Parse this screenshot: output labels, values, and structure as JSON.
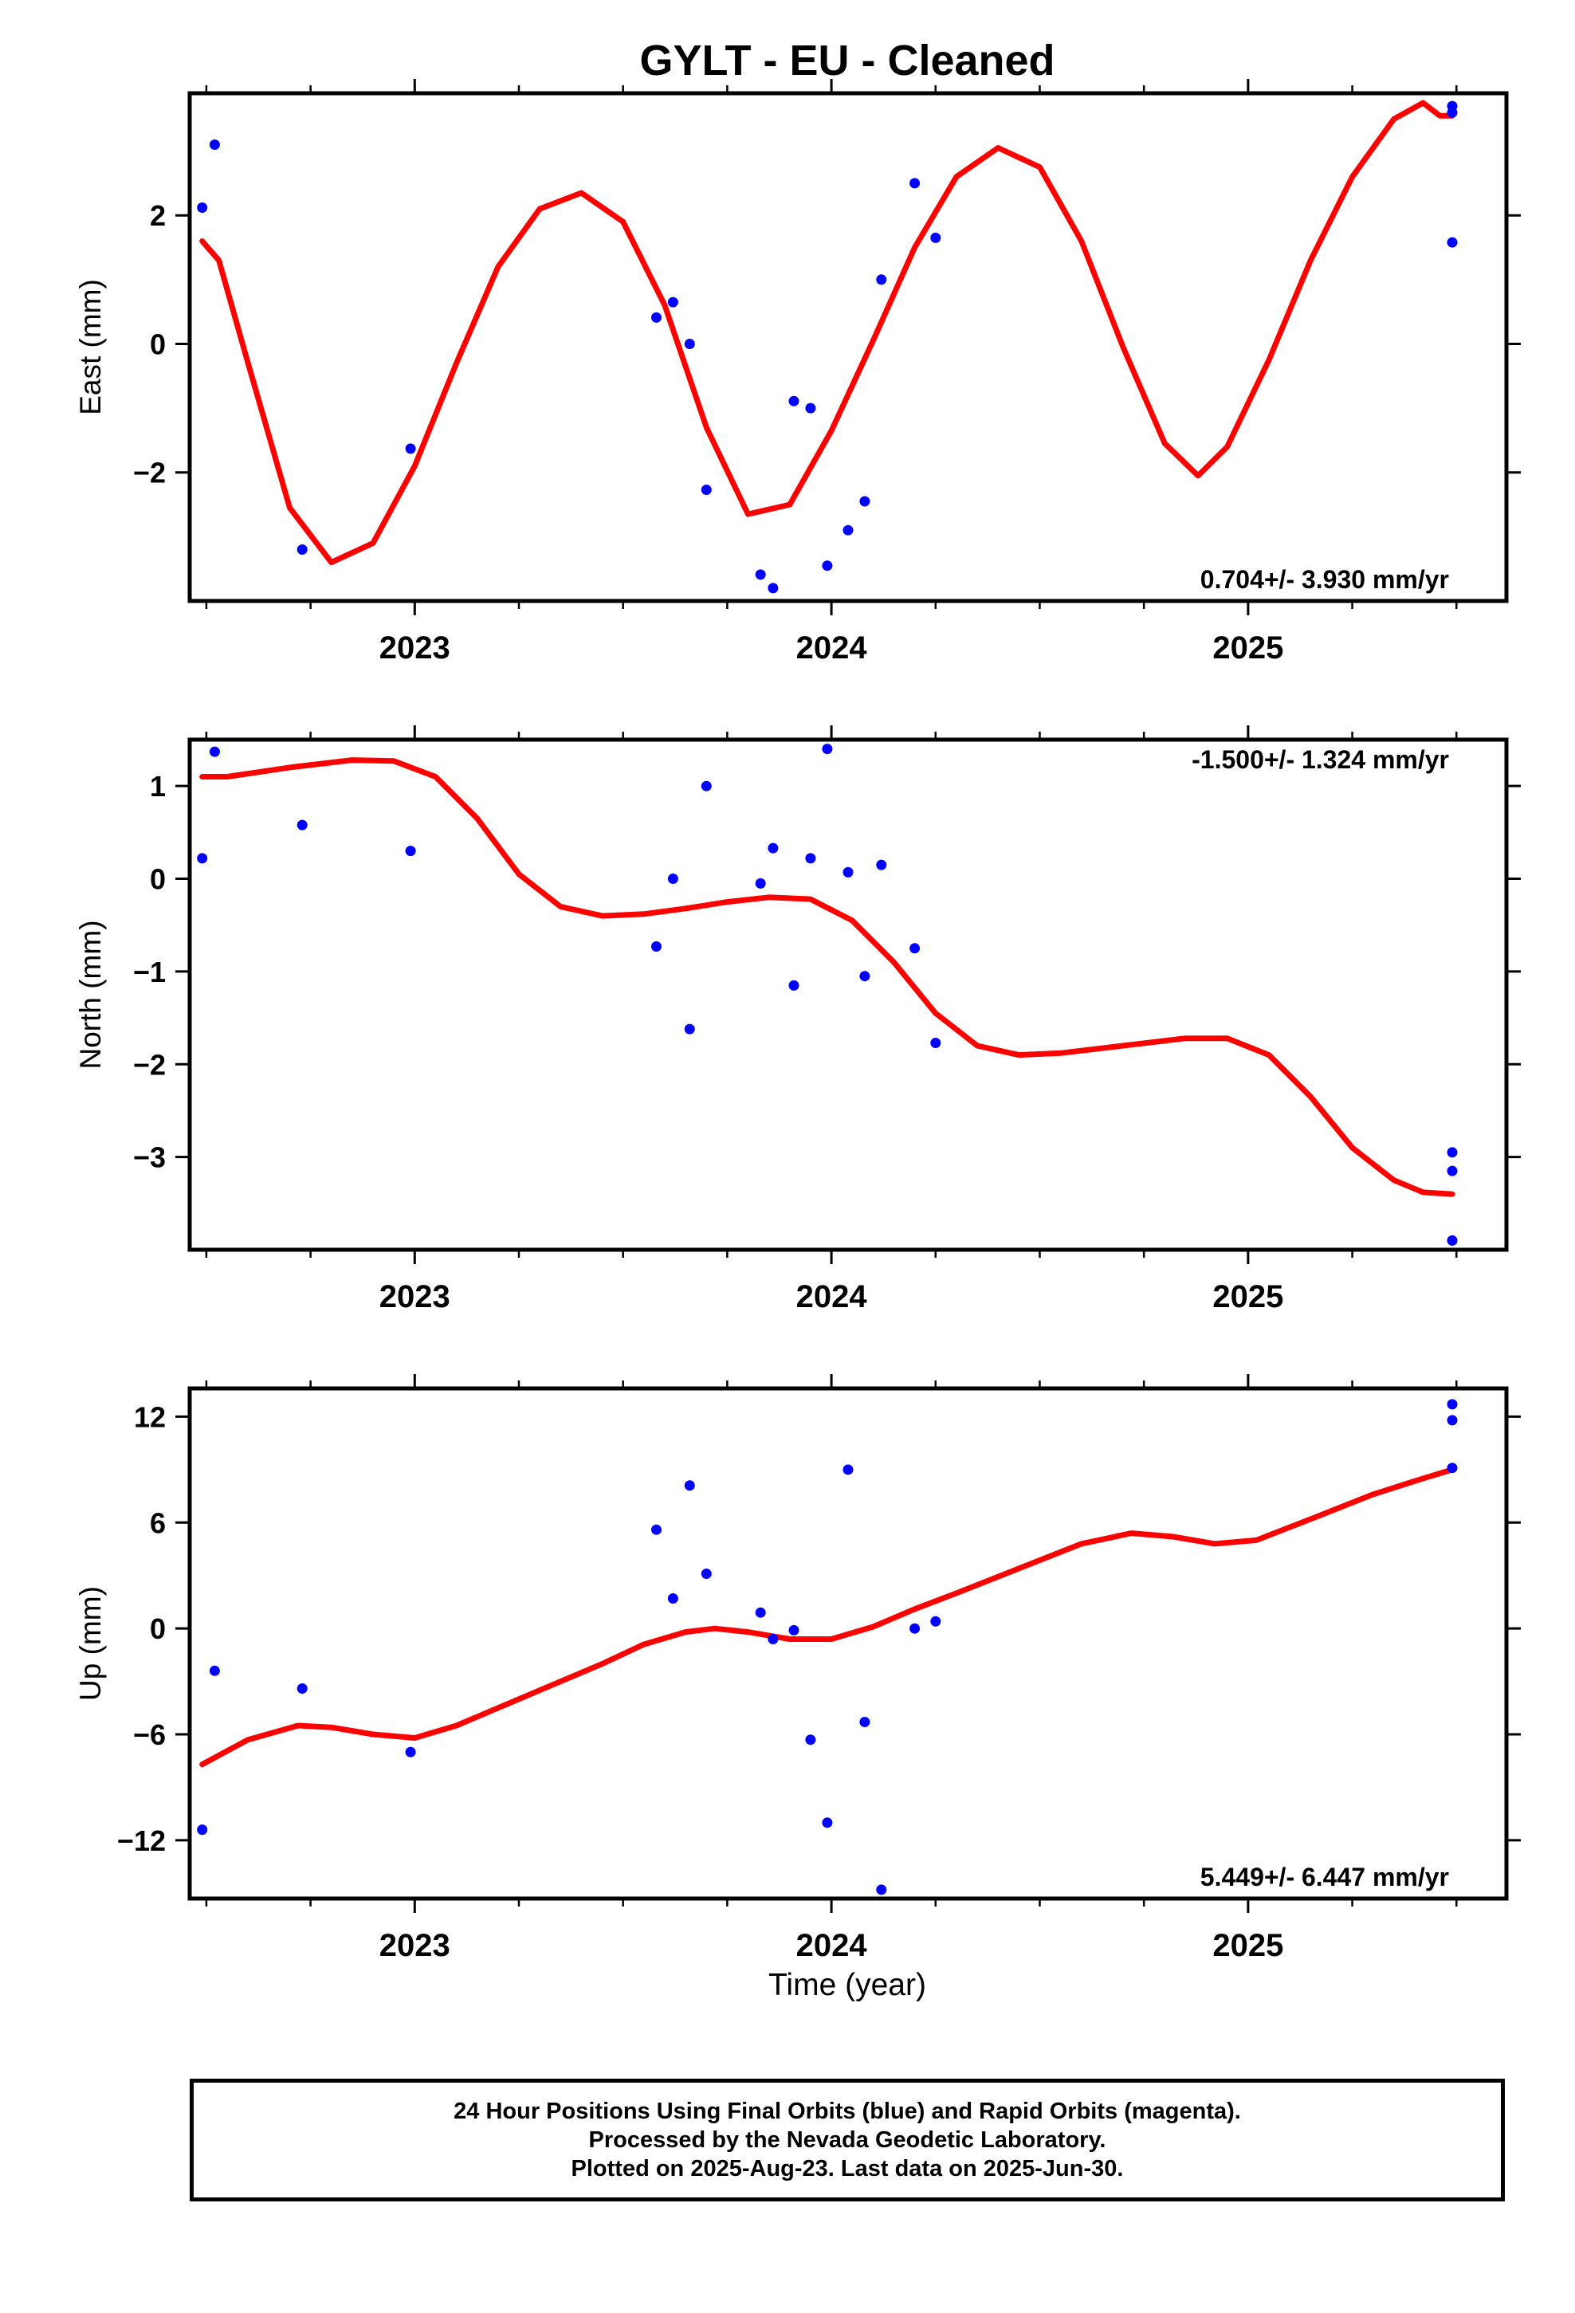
{
  "title": "GYLT  - EU - Cleaned",
  "colors": {
    "final_orbits": "#0000ff",
    "fit_curve": "#ff0000",
    "frame": "#000000"
  },
  "xlabel": "Time (year)",
  "footer": {
    "line1": "24 Hour Positions Using Final Orbits (blue) and Rapid Orbits (magenta).",
    "line2": "Processed by the Nevada Geodetic Laboratory.",
    "line3": "Plotted on 2025-Aug-23. Last data on 2025-Jun-30."
  },
  "chart_data": [
    {
      "type": "scatter",
      "panel": "east",
      "ylabel": "East (mm)",
      "rate_text": "0.704+/- 3.930 mm/yr",
      "xlim": [
        2022.46,
        2025.62
      ],
      "ylim": [
        -4.0,
        3.9
      ],
      "yticks": [
        -2,
        0,
        2
      ],
      "ytick_labels": [
        "−2",
        "0",
        "2"
      ],
      "xticks": [
        2023,
        2024,
        2025
      ],
      "xtick_labels": [
        "2023",
        "2024",
        "2025"
      ],
      "grid": false,
      "series": [
        {
          "points": [
            [
              2022.49,
              2.12
            ],
            [
              2022.52,
              3.1
            ],
            [
              2022.73,
              -3.2
            ],
            [
              2022.99,
              -1.63
            ],
            [
              2023.58,
              0.41
            ],
            [
              2023.62,
              0.65
            ],
            [
              2023.66,
              0.0
            ],
            [
              2023.7,
              -2.27
            ],
            [
              2023.83,
              -3.59
            ],
            [
              2023.86,
              -3.8
            ],
            [
              2023.91,
              -0.89
            ],
            [
              2023.95,
              -1.0
            ],
            [
              2023.99,
              -3.45
            ],
            [
              2024.04,
              -2.9
            ],
            [
              2024.08,
              -2.45
            ],
            [
              2024.12,
              1.0
            ],
            [
              2024.2,
              2.5
            ],
            [
              2024.25,
              1.65
            ],
            [
              2025.49,
              3.7
            ],
            [
              2025.49,
              3.6
            ],
            [
              2025.49,
              1.58
            ]
          ]
        },
        {
          "fit": [
            [
              2022.49,
              1.6
            ],
            [
              2022.53,
              1.3
            ],
            [
              2022.6,
              -0.3
            ],
            [
              2022.7,
              -2.55
            ],
            [
              2022.8,
              -3.4
            ],
            [
              2022.9,
              -3.1
            ],
            [
              2023.0,
              -1.9
            ],
            [
              2023.1,
              -0.3
            ],
            [
              2023.2,
              1.2
            ],
            [
              2023.3,
              2.1
            ],
            [
              2023.4,
              2.35
            ],
            [
              2023.5,
              1.9
            ],
            [
              2023.6,
              0.6
            ],
            [
              2023.7,
              -1.3
            ],
            [
              2023.8,
              -2.65
            ],
            [
              2023.9,
              -2.5
            ],
            [
              2024.0,
              -1.35
            ],
            [
              2024.1,
              0.05
            ],
            [
              2024.2,
              1.5
            ],
            [
              2024.3,
              2.6
            ],
            [
              2024.4,
              3.05
            ],
            [
              2024.5,
              2.75
            ],
            [
              2024.6,
              1.6
            ],
            [
              2024.7,
              -0.05
            ],
            [
              2024.8,
              -1.55
            ],
            [
              2024.88,
              -2.05
            ],
            [
              2024.95,
              -1.6
            ],
            [
              2025.05,
              -0.25
            ],
            [
              2025.15,
              1.3
            ],
            [
              2025.25,
              2.6
            ],
            [
              2025.35,
              3.5
            ],
            [
              2025.42,
              3.75
            ],
            [
              2025.46,
              3.55
            ],
            [
              2025.49,
              3.55
            ]
          ]
        }
      ]
    },
    {
      "type": "scatter",
      "panel": "north",
      "ylabel": "North (mm)",
      "rate_text": "-1.500+/- 1.324 mm/yr",
      "xlim": [
        2022.46,
        2025.62
      ],
      "ylim": [
        -4.0,
        1.5
      ],
      "yticks": [
        -3,
        -2,
        -1,
        0,
        1
      ],
      "ytick_labels": [
        "−3",
        "−2",
        "−1",
        "0",
        "1"
      ],
      "xticks": [
        2023,
        2024,
        2025
      ],
      "xtick_labels": [
        "2023",
        "2024",
        "2025"
      ],
      "grid": false,
      "series": [
        {
          "points": [
            [
              2022.49,
              0.22
            ],
            [
              2022.52,
              1.37
            ],
            [
              2022.73,
              0.58
            ],
            [
              2022.99,
              0.3
            ],
            [
              2023.58,
              -0.73
            ],
            [
              2023.62,
              0.0
            ],
            [
              2023.66,
              -1.62
            ],
            [
              2023.7,
              1.0
            ],
            [
              2023.83,
              -0.05
            ],
            [
              2023.86,
              0.33
            ],
            [
              2023.91,
              -1.15
            ],
            [
              2023.95,
              0.22
            ],
            [
              2023.99,
              1.4
            ],
            [
              2024.04,
              0.07
            ],
            [
              2024.08,
              -1.05
            ],
            [
              2024.12,
              0.15
            ],
            [
              2024.2,
              -0.75
            ],
            [
              2024.25,
              -1.77
            ],
            [
              2025.49,
              -2.95
            ],
            [
              2025.49,
              -3.15
            ],
            [
              2025.49,
              -3.9
            ]
          ]
        },
        {
          "fit": [
            [
              2022.49,
              1.1
            ],
            [
              2022.55,
              1.1
            ],
            [
              2022.7,
              1.2
            ],
            [
              2022.85,
              1.28
            ],
            [
              2022.95,
              1.27
            ],
            [
              2023.05,
              1.1
            ],
            [
              2023.15,
              0.65
            ],
            [
              2023.25,
              0.05
            ],
            [
              2023.35,
              -0.3
            ],
            [
              2023.45,
              -0.4
            ],
            [
              2023.55,
              -0.38
            ],
            [
              2023.65,
              -0.32
            ],
            [
              2023.75,
              -0.25
            ],
            [
              2023.85,
              -0.2
            ],
            [
              2023.95,
              -0.22
            ],
            [
              2024.05,
              -0.45
            ],
            [
              2024.15,
              -0.9
            ],
            [
              2024.25,
              -1.45
            ],
            [
              2024.35,
              -1.8
            ],
            [
              2024.45,
              -1.9
            ],
            [
              2024.55,
              -1.88
            ],
            [
              2024.7,
              -1.8
            ],
            [
              2024.85,
              -1.72
            ],
            [
              2024.95,
              -1.72
            ],
            [
              2025.05,
              -1.9
            ],
            [
              2025.15,
              -2.35
            ],
            [
              2025.25,
              -2.9
            ],
            [
              2025.35,
              -3.25
            ],
            [
              2025.42,
              -3.38
            ],
            [
              2025.49,
              -3.4
            ]
          ]
        }
      ]
    },
    {
      "type": "scatter",
      "panel": "up",
      "ylabel": "Up (mm)",
      "rate_text": "5.449+/- 6.447 mm/yr",
      "xlim": [
        2022.46,
        2025.62
      ],
      "ylim": [
        -15.3,
        13.6
      ],
      "yticks": [
        -12,
        -6,
        0,
        6,
        12
      ],
      "ytick_labels": [
        "−12",
        "−6",
        "0",
        "6",
        "12"
      ],
      "xticks": [
        2023,
        2024,
        2025
      ],
      "xtick_labels": [
        "2023",
        "2024",
        "2025"
      ],
      "grid": false,
      "series": [
        {
          "points": [
            [
              2022.49,
              -11.4
            ],
            [
              2022.52,
              -2.4
            ],
            [
              2022.73,
              -3.4
            ],
            [
              2022.99,
              -7.0
            ],
            [
              2023.58,
              5.6
            ],
            [
              2023.62,
              1.7
            ],
            [
              2023.66,
              8.1
            ],
            [
              2023.7,
              3.1
            ],
            [
              2023.83,
              0.9
            ],
            [
              2023.86,
              -0.6
            ],
            [
              2023.91,
              -0.1
            ],
            [
              2023.95,
              -6.3
            ],
            [
              2023.99,
              -11.0
            ],
            [
              2024.04,
              9.0
            ],
            [
              2024.08,
              -5.3
            ],
            [
              2024.12,
              -14.8
            ],
            [
              2024.2,
              0.0
            ],
            [
              2024.25,
              0.4
            ],
            [
              2025.49,
              12.7
            ],
            [
              2025.49,
              11.8
            ],
            [
              2025.49,
              9.1
            ]
          ]
        },
        {
          "fit": [
            [
              2022.49,
              -7.7
            ],
            [
              2022.6,
              -6.3
            ],
            [
              2022.72,
              -5.5
            ],
            [
              2022.8,
              -5.6
            ],
            [
              2022.9,
              -6.0
            ],
            [
              2023.0,
              -6.2
            ],
            [
              2023.1,
              -5.5
            ],
            [
              2023.2,
              -4.5
            ],
            [
              2023.3,
              -3.5
            ],
            [
              2023.45,
              -2.0
            ],
            [
              2023.55,
              -0.9
            ],
            [
              2023.65,
              -0.2
            ],
            [
              2023.72,
              0.0
            ],
            [
              2023.8,
              -0.2
            ],
            [
              2023.9,
              -0.6
            ],
            [
              2024.0,
              -0.6
            ],
            [
              2024.1,
              0.1
            ],
            [
              2024.2,
              1.1
            ],
            [
              2024.3,
              2.0
            ],
            [
              2024.45,
              3.4
            ],
            [
              2024.6,
              4.8
            ],
            [
              2024.72,
              5.4
            ],
            [
              2024.82,
              5.2
            ],
            [
              2024.92,
              4.8
            ],
            [
              2025.02,
              5.0
            ],
            [
              2025.15,
              6.2
            ],
            [
              2025.3,
              7.6
            ],
            [
              2025.42,
              8.5
            ],
            [
              2025.49,
              9.0
            ]
          ]
        }
      ]
    }
  ]
}
